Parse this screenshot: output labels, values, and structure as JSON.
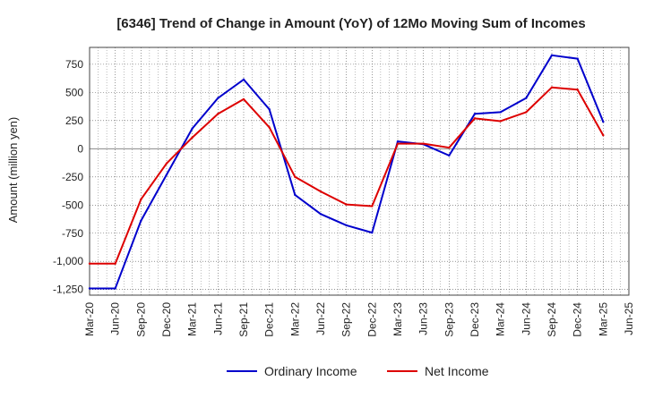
{
  "chart_data": {
    "type": "line",
    "title": "[6346]  Trend of Change in Amount (YoY) of 12Mo Moving Sum of Incomes",
    "xlabel": "",
    "ylabel": "Amount (million yen)",
    "ylim": [
      -1300,
      900
    ],
    "yticks": [
      750,
      500,
      250,
      0,
      -250,
      -500,
      -750,
      -1000,
      -1250
    ],
    "ytick_labels": [
      "750",
      "500",
      "250",
      "0",
      "-250",
      "-500",
      "-750",
      "-1,000",
      "-1,250"
    ],
    "categories": [
      "Mar-20",
      "Jun-20",
      "Sep-20",
      "Dec-20",
      "Mar-21",
      "Jun-21",
      "Sep-21",
      "Dec-21",
      "Mar-22",
      "Jun-22",
      "Sep-22",
      "Dec-22",
      "Mar-23",
      "Jun-23",
      "Sep-23",
      "Dec-23",
      "Mar-24",
      "Jun-24",
      "Sep-24",
      "Dec-24",
      "Mar-25",
      "Jun-25"
    ],
    "grid": true,
    "legend_position": "bottom",
    "series": [
      {
        "name": "Ordinary Income",
        "color": "#0000cc",
        "values": [
          -1240,
          -1240,
          -640,
          -230,
          180,
          450,
          615,
          350,
          -410,
          -580,
          -680,
          -745,
          65,
          40,
          -60,
          310,
          325,
          450,
          830,
          800,
          240,
          null
        ]
      },
      {
        "name": "Net Income",
        "color": "#dd0000",
        "values": [
          -1020,
          -1020,
          -450,
          -130,
          100,
          310,
          440,
          190,
          -250,
          -380,
          -495,
          -510,
          45,
          45,
          10,
          270,
          245,
          325,
          545,
          525,
          120,
          null
        ]
      }
    ]
  }
}
